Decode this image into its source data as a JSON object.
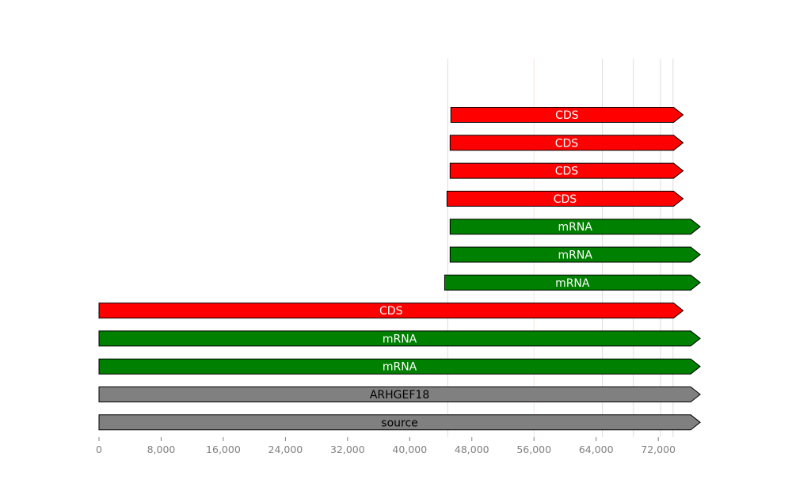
{
  "chart_data": {
    "type": "gene-feature-map",
    "title": "",
    "xlabel": "",
    "ylabel": "",
    "xlim": [
      0,
      78000
    ],
    "x_ticks": [
      {
        "value": 0,
        "label": "0"
      },
      {
        "value": 8000,
        "label": "8,000"
      },
      {
        "value": 16000,
        "label": "16,000"
      },
      {
        "value": 24000,
        "label": "24,000"
      },
      {
        "value": 32000,
        "label": "32,000"
      },
      {
        "value": 40000,
        "label": "40,000"
      },
      {
        "value": 48000,
        "label": "48,000"
      },
      {
        "value": 56000,
        "label": "56,000"
      },
      {
        "value": 64000,
        "label": "64,000"
      },
      {
        "value": 72000,
        "label": "72,000"
      }
    ],
    "guide_lines": [
      44900,
      56000,
      64800,
      68800,
      72300,
      73900
    ],
    "colors": {
      "CDS": "#ff0000",
      "mRNA": "#008000",
      "gene": "#808080",
      "source": "#808080",
      "tick_text": "#808080",
      "guide_line": "#dddddd",
      "guide_line_warm": "#f5e6dc"
    },
    "features": [
      {
        "label": "CDS",
        "kind": "CDS",
        "start": 45300,
        "end": 75200
      },
      {
        "label": "CDS",
        "kind": "CDS",
        "start": 45200,
        "end": 75200
      },
      {
        "label": "CDS",
        "kind": "CDS",
        "start": 45200,
        "end": 75200
      },
      {
        "label": "CDS",
        "kind": "CDS",
        "start": 44800,
        "end": 75200
      },
      {
        "label": "mRNA",
        "kind": "mRNA",
        "start": 45200,
        "end": 77400
      },
      {
        "label": "mRNA",
        "kind": "mRNA",
        "start": 45200,
        "end": 77400
      },
      {
        "label": "mRNA",
        "kind": "mRNA",
        "start": 44500,
        "end": 77400
      },
      {
        "label": "CDS",
        "kind": "CDS",
        "start": 0,
        "end": 75200
      },
      {
        "label": "mRNA",
        "kind": "mRNA",
        "start": 0,
        "end": 77400
      },
      {
        "label": "mRNA",
        "kind": "mRNA",
        "start": 0,
        "end": 77400
      },
      {
        "label": "ARHGEF18",
        "kind": "gene",
        "start": 0,
        "end": 77400
      },
      {
        "label": "source",
        "kind": "source",
        "start": 0,
        "end": 77400
      }
    ]
  }
}
